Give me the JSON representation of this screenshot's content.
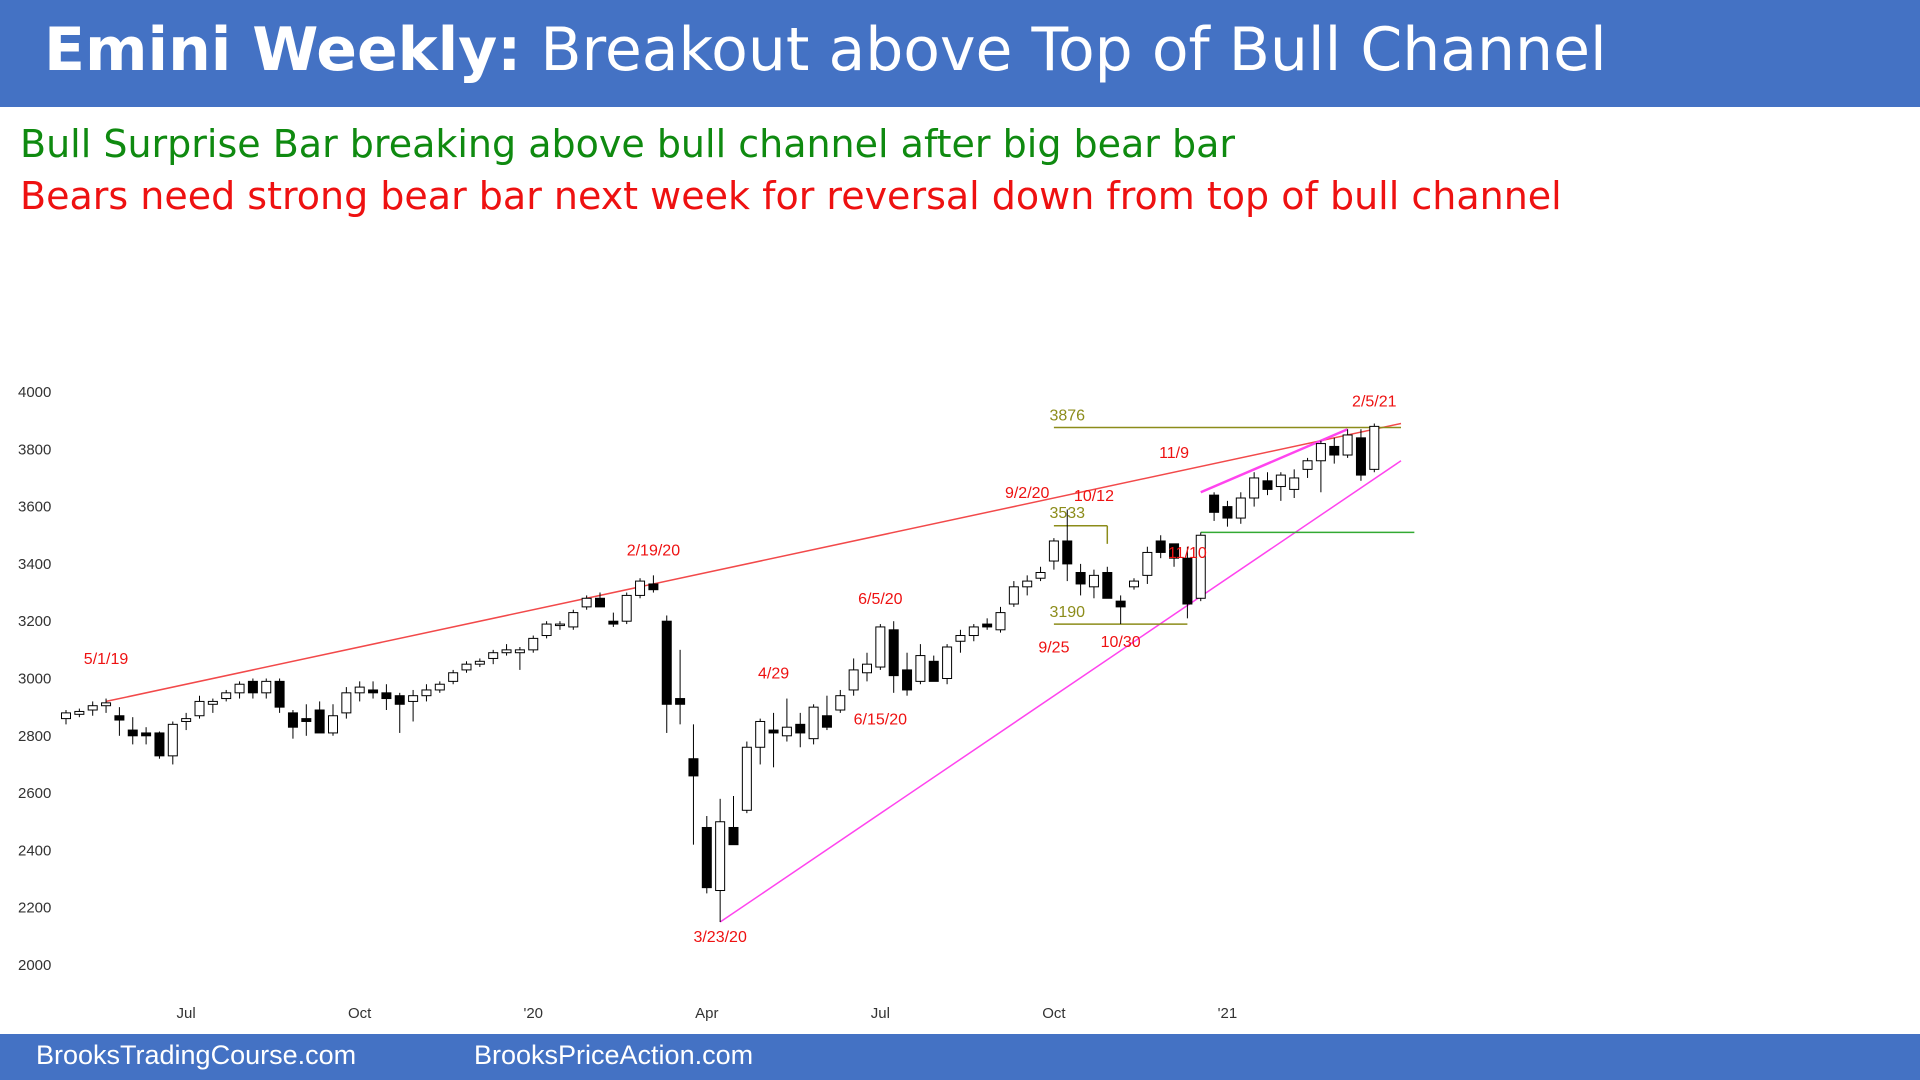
{
  "header": {
    "title_bold": "Emini Weekly:",
    "title_rest": " Breakout above Top of Bull Channel"
  },
  "notes": {
    "bull": "Bull Surprise Bar breaking above bull channel after big bear bar",
    "bear": "Bears need strong bear bar next week for reversal down from top of bull channel"
  },
  "footer": {
    "left": "BrooksTradingCourse.com",
    "right": "BrooksPriceAction.com"
  },
  "colors": {
    "header_bg": "#4472c4",
    "bull_text": "#0f8a10",
    "bear_text": "#ee1111",
    "channel_top": "#f2494a",
    "channel_bottom": "#ff44ee",
    "level_line": "#8c8c1a",
    "support_line": "#33aa33"
  },
  "chart_data": {
    "type": "candlestick",
    "timeframe": "weekly",
    "ylim": [
      2000,
      4000
    ],
    "y_ticks": [
      2000,
      2200,
      2400,
      2600,
      2800,
      3000,
      3200,
      3400,
      3600,
      3800,
      4000
    ],
    "x_ticks": [
      {
        "label": "Jul",
        "bar": 9
      },
      {
        "label": "Oct",
        "bar": 22
      },
      {
        "label": "'20",
        "bar": 35
      },
      {
        "label": "Apr",
        "bar": 48
      },
      {
        "label": "Jul",
        "bar": 61
      },
      {
        "label": "Oct",
        "bar": 74
      },
      {
        "label": "'21",
        "bar": 87
      }
    ],
    "bars": [
      {
        "o": 2860,
        "h": 2890,
        "l": 2840,
        "c": 2880
      },
      {
        "o": 2875,
        "h": 2895,
        "l": 2865,
        "c": 2885
      },
      {
        "o": 2890,
        "h": 2920,
        "l": 2870,
        "c": 2905
      },
      {
        "o": 2905,
        "h": 2930,
        "l": 2880,
        "c": 2915
      },
      {
        "o": 2870,
        "h": 2900,
        "l": 2800,
        "c": 2855
      },
      {
        "o": 2820,
        "h": 2865,
        "l": 2770,
        "c": 2800
      },
      {
        "o": 2810,
        "h": 2830,
        "l": 2770,
        "c": 2800
      },
      {
        "o": 2810,
        "h": 2815,
        "l": 2720,
        "c": 2730
      },
      {
        "o": 2730,
        "h": 2850,
        "l": 2700,
        "c": 2840
      },
      {
        "o": 2850,
        "h": 2880,
        "l": 2820,
        "c": 2860
      },
      {
        "o": 2870,
        "h": 2940,
        "l": 2860,
        "c": 2920
      },
      {
        "o": 2910,
        "h": 2930,
        "l": 2880,
        "c": 2920
      },
      {
        "o": 2930,
        "h": 2960,
        "l": 2920,
        "c": 2950
      },
      {
        "o": 2950,
        "h": 2990,
        "l": 2930,
        "c": 2980
      },
      {
        "o": 2990,
        "h": 3000,
        "l": 2930,
        "c": 2950
      },
      {
        "o": 2950,
        "h": 3000,
        "l": 2930,
        "c": 2990
      },
      {
        "o": 2990,
        "h": 3000,
        "l": 2880,
        "c": 2900
      },
      {
        "o": 2880,
        "h": 2890,
        "l": 2790,
        "c": 2830
      },
      {
        "o": 2860,
        "h": 2910,
        "l": 2800,
        "c": 2850
      },
      {
        "o": 2890,
        "h": 2920,
        "l": 2820,
        "c": 2810
      },
      {
        "o": 2810,
        "h": 2910,
        "l": 2800,
        "c": 2870
      },
      {
        "o": 2880,
        "h": 2970,
        "l": 2860,
        "c": 2950
      },
      {
        "o": 2950,
        "h": 2990,
        "l": 2920,
        "c": 2970
      },
      {
        "o": 2960,
        "h": 2990,
        "l": 2930,
        "c": 2950
      },
      {
        "o": 2950,
        "h": 2980,
        "l": 2890,
        "c": 2930
      },
      {
        "o": 2940,
        "h": 2950,
        "l": 2810,
        "c": 2910
      },
      {
        "o": 2920,
        "h": 2960,
        "l": 2850,
        "c": 2940
      },
      {
        "o": 2940,
        "h": 2980,
        "l": 2920,
        "c": 2960
      },
      {
        "o": 2960,
        "h": 2990,
        "l": 2950,
        "c": 2980
      },
      {
        "o": 2990,
        "h": 3030,
        "l": 2980,
        "c": 3020
      },
      {
        "o": 3030,
        "h": 3060,
        "l": 3020,
        "c": 3050
      },
      {
        "o": 3050,
        "h": 3070,
        "l": 3040,
        "c": 3060
      },
      {
        "o": 3070,
        "h": 3100,
        "l": 3050,
        "c": 3090
      },
      {
        "o": 3090,
        "h": 3120,
        "l": 3080,
        "c": 3100
      },
      {
        "o": 3090,
        "h": 3110,
        "l": 3030,
        "c": 3100
      },
      {
        "o": 3100,
        "h": 3150,
        "l": 3090,
        "c": 3140
      },
      {
        "o": 3150,
        "h": 3200,
        "l": 3140,
        "c": 3190
      },
      {
        "o": 3190,
        "h": 3200,
        "l": 3170,
        "c": 3190
      },
      {
        "o": 3180,
        "h": 3240,
        "l": 3170,
        "c": 3230
      },
      {
        "o": 3250,
        "h": 3290,
        "l": 3240,
        "c": 3280
      },
      {
        "o": 3280,
        "h": 3300,
        "l": 3260,
        "c": 3250
      },
      {
        "o": 3200,
        "h": 3230,
        "l": 3180,
        "c": 3190
      },
      {
        "o": 3200,
        "h": 3300,
        "l": 3190,
        "c": 3290
      },
      {
        "o": 3290,
        "h": 3350,
        "l": 3280,
        "c": 3340
      },
      {
        "o": 3330,
        "h": 3360,
        "l": 3300,
        "c": 3310
      },
      {
        "o": 3200,
        "h": 3220,
        "l": 2810,
        "c": 2910
      },
      {
        "o": 2930,
        "h": 3100,
        "l": 2840,
        "c": 2910
      },
      {
        "o": 2720,
        "h": 2840,
        "l": 2420,
        "c": 2660
      },
      {
        "o": 2480,
        "h": 2520,
        "l": 2250,
        "c": 2270
      },
      {
        "o": 2260,
        "h": 2580,
        "l": 2150,
        "c": 2500
      },
      {
        "o": 2480,
        "h": 2590,
        "l": 2420,
        "c": 2420
      },
      {
        "o": 2540,
        "h": 2780,
        "l": 2530,
        "c": 2760
      },
      {
        "o": 2760,
        "h": 2860,
        "l": 2700,
        "c": 2850
      },
      {
        "o": 2820,
        "h": 2880,
        "l": 2690,
        "c": 2810
      },
      {
        "o": 2800,
        "h": 2930,
        "l": 2780,
        "c": 2830
      },
      {
        "o": 2840,
        "h": 2880,
        "l": 2760,
        "c": 2810
      },
      {
        "o": 2790,
        "h": 2910,
        "l": 2770,
        "c": 2900
      },
      {
        "o": 2870,
        "h": 2940,
        "l": 2820,
        "c": 2830
      },
      {
        "o": 2890,
        "h": 2960,
        "l": 2880,
        "c": 2940
      },
      {
        "o": 2960,
        "h": 3070,
        "l": 2940,
        "c": 3030
      },
      {
        "o": 3020,
        "h": 3090,
        "l": 2990,
        "c": 3050
      },
      {
        "o": 3040,
        "h": 3190,
        "l": 3030,
        "c": 3180
      },
      {
        "o": 3170,
        "h": 3200,
        "l": 2950,
        "c": 3010
      },
      {
        "o": 3030,
        "h": 3090,
        "l": 2940,
        "c": 2960
      },
      {
        "o": 2990,
        "h": 3120,
        "l": 2980,
        "c": 3080
      },
      {
        "o": 3060,
        "h": 3080,
        "l": 2990,
        "c": 2990
      },
      {
        "o": 3000,
        "h": 3120,
        "l": 2980,
        "c": 3110
      },
      {
        "o": 3130,
        "h": 3170,
        "l": 3090,
        "c": 3150
      },
      {
        "o": 3150,
        "h": 3190,
        "l": 3130,
        "c": 3180
      },
      {
        "o": 3190,
        "h": 3210,
        "l": 3170,
        "c": 3180
      },
      {
        "o": 3170,
        "h": 3250,
        "l": 3160,
        "c": 3230
      },
      {
        "o": 3260,
        "h": 3340,
        "l": 3250,
        "c": 3320
      },
      {
        "o": 3320,
        "h": 3360,
        "l": 3290,
        "c": 3340
      },
      {
        "o": 3350,
        "h": 3390,
        "l": 3340,
        "c": 3370
      },
      {
        "o": 3410,
        "h": 3490,
        "l": 3380,
        "c": 3480
      },
      {
        "o": 3480,
        "h": 3590,
        "l": 3340,
        "c": 3400
      },
      {
        "o": 3370,
        "h": 3400,
        "l": 3290,
        "c": 3330
      },
      {
        "o": 3320,
        "h": 3380,
        "l": 3280,
        "c": 3360
      },
      {
        "o": 3370,
        "h": 3390,
        "l": 3300,
        "c": 3280
      },
      {
        "o": 3270,
        "h": 3290,
        "l": 3190,
        "c": 3250
      },
      {
        "o": 3320,
        "h": 3350,
        "l": 3310,
        "c": 3340
      },
      {
        "o": 3360,
        "h": 3460,
        "l": 3330,
        "c": 3440
      },
      {
        "o": 3480,
        "h": 3500,
        "l": 3420,
        "c": 3440
      },
      {
        "o": 3470,
        "h": 3470,
        "l": 3390,
        "c": 3420
      },
      {
        "o": 3420,
        "h": 3460,
        "l": 3210,
        "c": 3260
      },
      {
        "o": 3280,
        "h": 3510,
        "l": 3270,
        "c": 3500
      },
      {
        "o": 3640,
        "h": 3650,
        "l": 3550,
        "c": 3580
      },
      {
        "o": 3600,
        "h": 3620,
        "l": 3530,
        "c": 3560
      },
      {
        "o": 3560,
        "h": 3650,
        "l": 3540,
        "c": 3630
      },
      {
        "o": 3630,
        "h": 3720,
        "l": 3600,
        "c": 3700
      },
      {
        "o": 3690,
        "h": 3720,
        "l": 3640,
        "c": 3660
      },
      {
        "o": 3670,
        "h": 3720,
        "l": 3620,
        "c": 3710
      },
      {
        "o": 3660,
        "h": 3730,
        "l": 3630,
        "c": 3700
      },
      {
        "o": 3730,
        "h": 3770,
        "l": 3700,
        "c": 3760
      },
      {
        "o": 3760,
        "h": 3830,
        "l": 3650,
        "c": 3820
      },
      {
        "o": 3810,
        "h": 3840,
        "l": 3750,
        "c": 3780
      },
      {
        "o": 3780,
        "h": 3870,
        "l": 3770,
        "c": 3850
      },
      {
        "o": 3840,
        "h": 3870,
        "l": 3690,
        "c": 3710
      },
      {
        "o": 3730,
        "h": 3890,
        "l": 3720,
        "c": 3880
      }
    ],
    "lines": [
      {
        "name": "channel-top",
        "color": "#f2494a",
        "from": {
          "bar": 3,
          "y": 2920
        },
        "to": {
          "bar": 100,
          "y": 3890
        }
      },
      {
        "name": "channel-bottom",
        "color": "#ff44ee",
        "from": {
          "bar": 49,
          "y": 2150
        },
        "to": {
          "bar": 100,
          "y": 3760
        }
      },
      {
        "name": "wedge-top",
        "color": "#ff44ee",
        "from": {
          "bar": 85,
          "y": 3650
        },
        "to": {
          "bar": 96,
          "y": 3870
        }
      },
      {
        "name": "level-3876",
        "color": "#8c8c1a",
        "from": {
          "bar": 74,
          "y": 3876
        },
        "to": {
          "bar": 100,
          "y": 3876
        }
      },
      {
        "name": "level-3533",
        "color": "#8c8c1a",
        "from": {
          "bar": 74,
          "y": 3533
        },
        "to": {
          "bar": 78,
          "y": 3533
        }
      },
      {
        "name": "level-3190",
        "color": "#8c8c1a",
        "from": {
          "bar": 74,
          "y": 3190
        },
        "to": {
          "bar": 84,
          "y": 3190
        }
      },
      {
        "name": "support-11-10",
        "color": "#33aa33",
        "from": {
          "bar": 85,
          "y": 3510
        },
        "to": {
          "bar": 101,
          "y": 3510
        }
      },
      {
        "name": "level-3533-drop",
        "color": "#8c8c1a",
        "from": {
          "bar": 78,
          "y": 3533
        },
        "to": {
          "bar": 78,
          "y": 3470
        }
      }
    ],
    "annotations": [
      {
        "text": "5/1/19",
        "bar": 3,
        "y": 3050,
        "color": "#ee1111"
      },
      {
        "text": "2/19/20",
        "bar": 44,
        "y": 3430,
        "color": "#ee1111"
      },
      {
        "text": "3/23/20",
        "bar": 49,
        "y": 2080,
        "color": "#ee1111"
      },
      {
        "text": "4/29",
        "bar": 53,
        "y": 3000,
        "color": "#ee1111"
      },
      {
        "text": "6/5/20",
        "bar": 61,
        "y": 3260,
        "color": "#ee1111"
      },
      {
        "text": "6/15/20",
        "bar": 61,
        "y": 2840,
        "color": "#ee1111"
      },
      {
        "text": "9/2/20",
        "bar": 72,
        "y": 3630,
        "color": "#ee1111"
      },
      {
        "text": "9/25",
        "bar": 74,
        "y": 3090,
        "color": "#ee1111"
      },
      {
        "text": "10/12",
        "bar": 77,
        "y": 3620,
        "color": "#ee1111"
      },
      {
        "text": "10/30",
        "bar": 79,
        "y": 3110,
        "color": "#ee1111"
      },
      {
        "text": "11/9",
        "bar": 83,
        "y": 3770,
        "color": "#ee1111"
      },
      {
        "text": "11/10",
        "bar": 84,
        "y": 3420,
        "color": "#ee1111"
      },
      {
        "text": "2/5/21",
        "bar": 98,
        "y": 3950,
        "color": "#ee1111"
      },
      {
        "text": "3876",
        "bar": 75,
        "y": 3900,
        "color": "#8c8c1a"
      },
      {
        "text": "3533",
        "bar": 75,
        "y": 3560,
        "color": "#8c8c1a"
      },
      {
        "text": "3190",
        "bar": 75,
        "y": 3215,
        "color": "#8c8c1a"
      }
    ]
  }
}
